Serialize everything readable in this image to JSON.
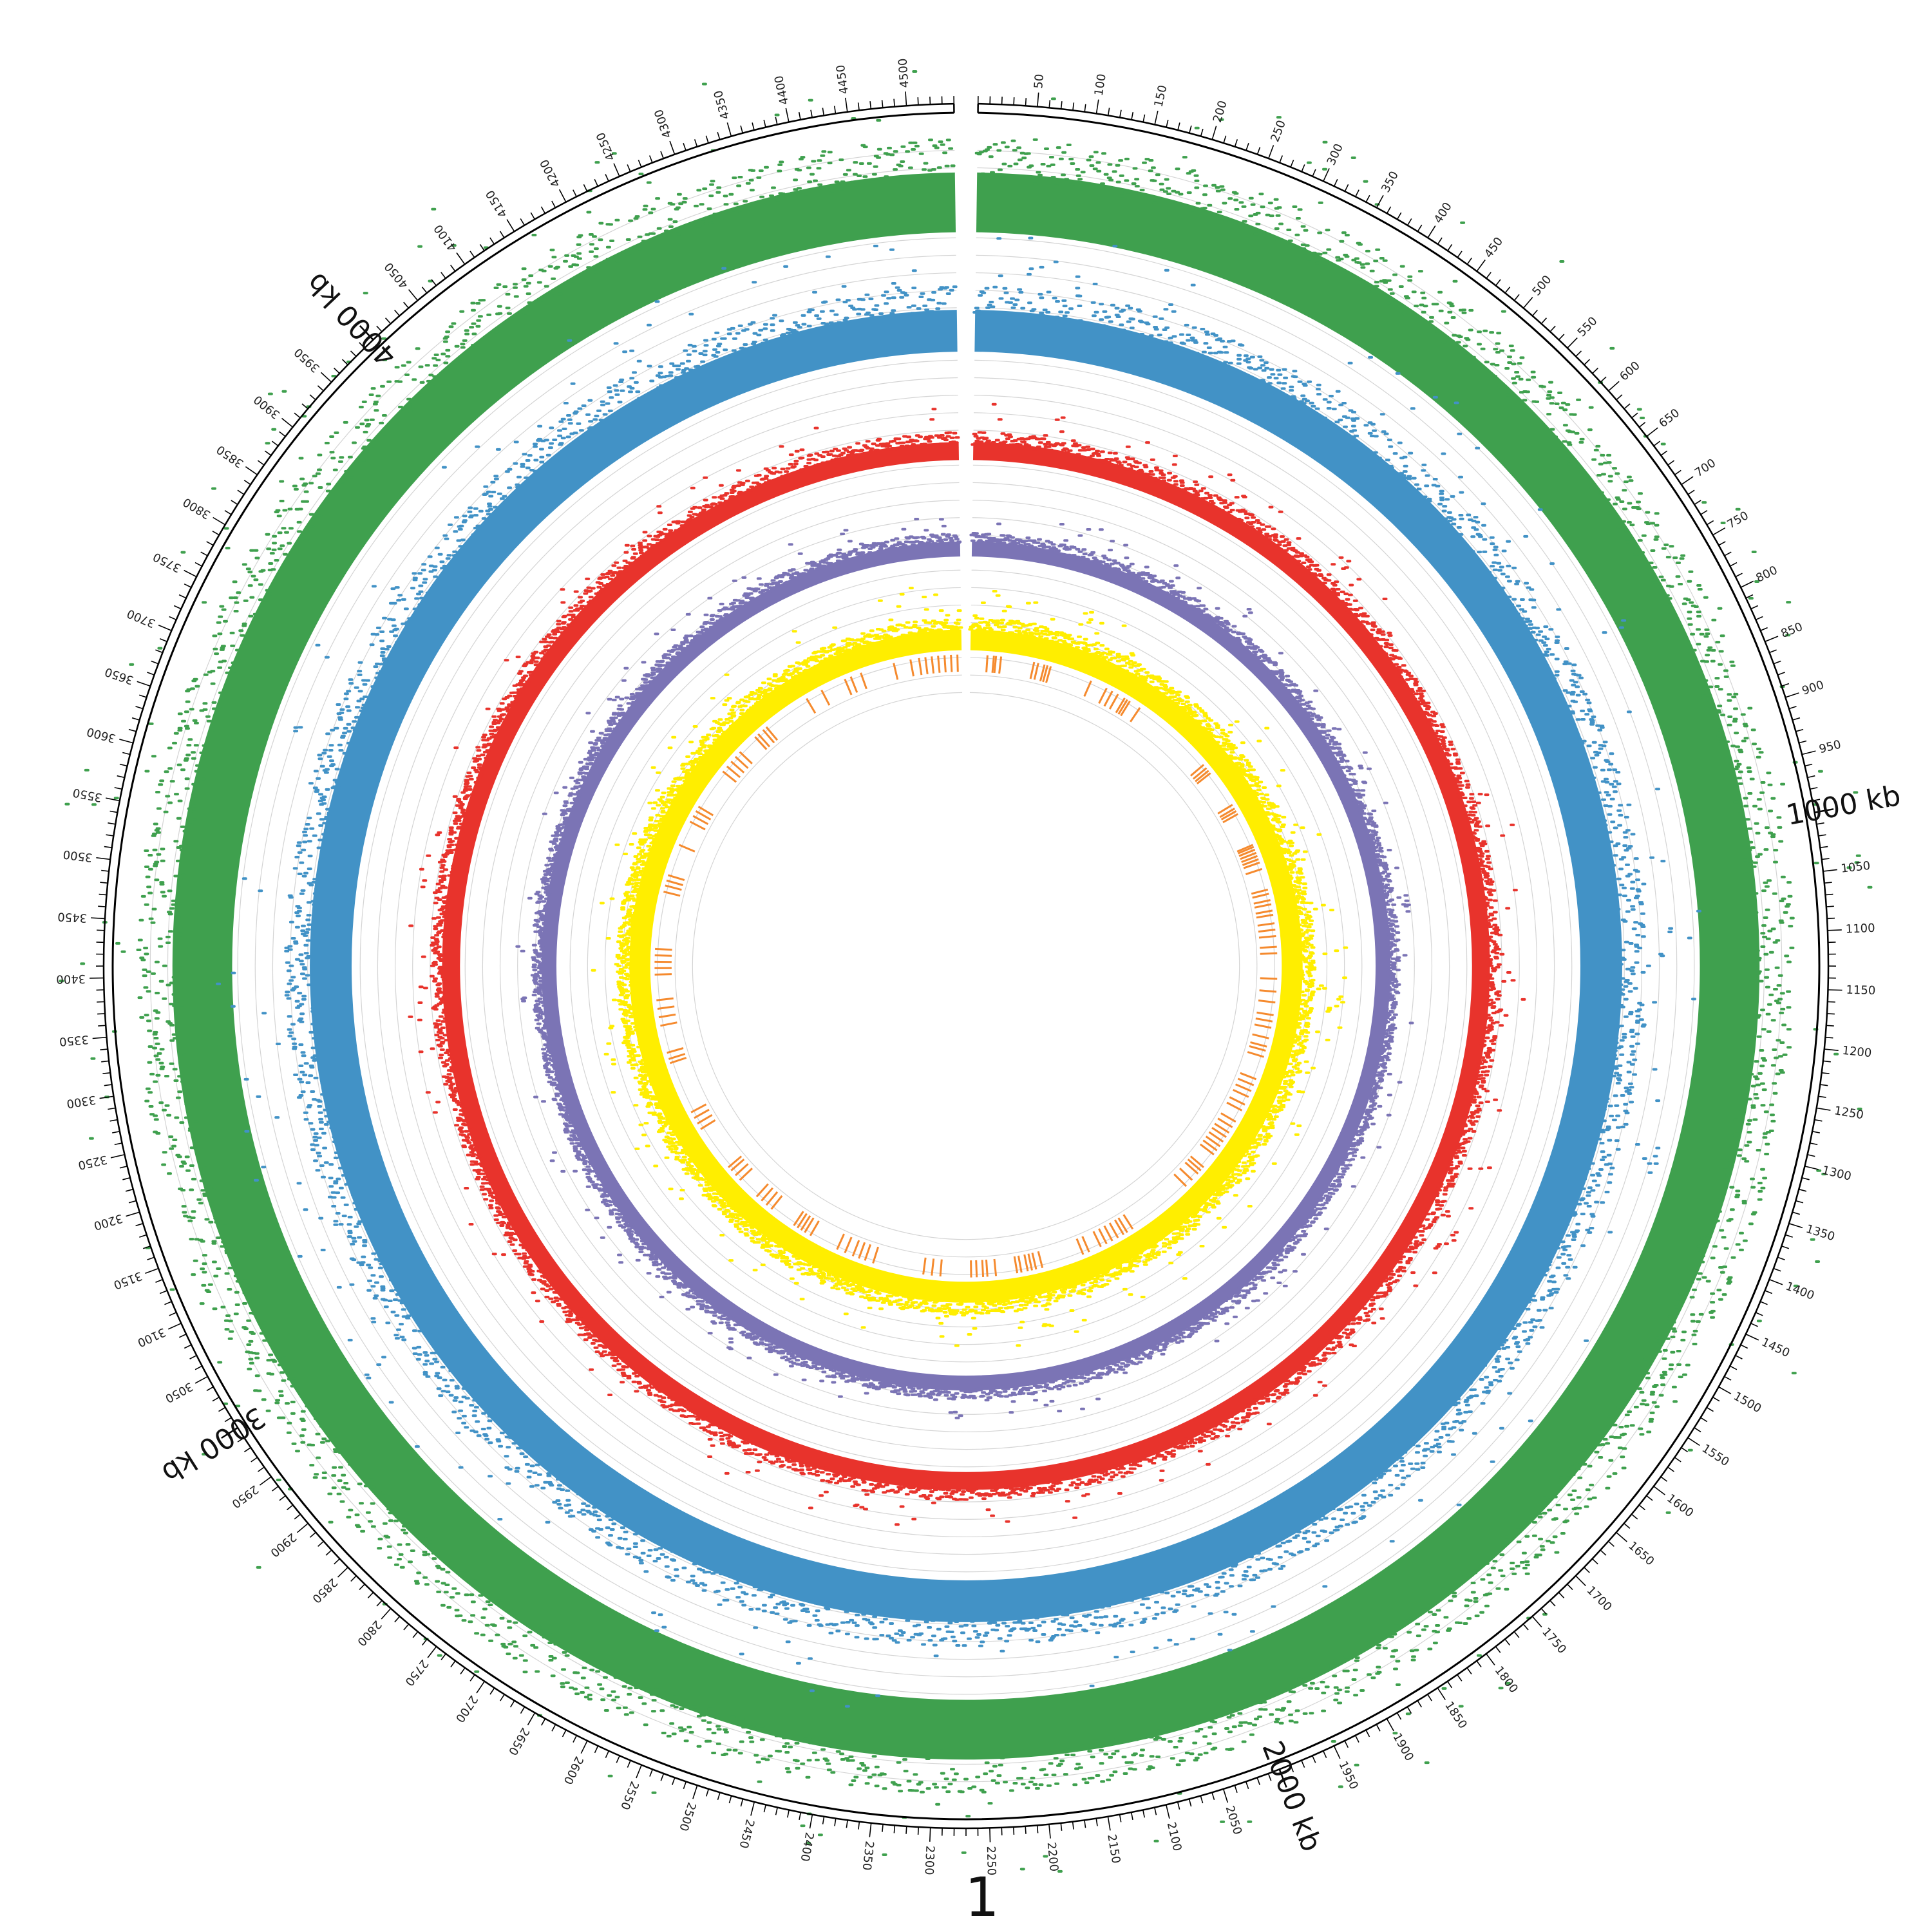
{
  "chart_data": {
    "type": "scatter",
    "genome_length_kb": 4540,
    "chromosome_label": "1",
    "major_ticks": [
      {
        "kb": 1000,
        "label": "1000 kb"
      },
      {
        "kb": 2000,
        "label": "2000 kb"
      },
      {
        "kb": 3000,
        "label": "3000 kb"
      },
      {
        "kb": 4000,
        "label": "4000 kb"
      }
    ],
    "labeled_tick_interval_kb": 50,
    "minor_tick_interval_kb": 10,
    "tracks": [
      {
        "color": "#3fa04e",
        "baseline": 0.96,
        "mean_height": 0.1
      },
      {
        "color": "#4292c6",
        "baseline": 0.79,
        "mean_height": 0.07
      },
      {
        "color": "#e8332c",
        "baseline": 0.623,
        "mean_height": 0.03
      },
      {
        "color": "#7b74b5",
        "baseline": 0.505,
        "mean_height": 0.025
      },
      {
        "color": "#ffee00",
        "baseline": 0.405,
        "mean_height": 0.035
      }
    ],
    "features_color": "#f58a2e",
    "feature_positions_kb": [
      40,
      55,
      60,
      72,
      150,
      160,
      175,
      182,
      190,
      290,
      330,
      345,
      360,
      378,
      385,
      392,
      420,
      620,
      630,
      638,
      645,
      735,
      745,
      752,
      760,
      840,
      845,
      852,
      860,
      868,
      876,
      884,
      900,
      950,
      960,
      975,
      985,
      1000,
      1010,
      1030,
      1045,
      1060,
      1085,
      1100,
      1160,
      1190,
      1215,
      1245,
      1260,
      1275,
      1300,
      1320,
      1330,
      1345,
      1400,
      1415,
      1430,
      1445,
      1465,
      1480,
      1510,
      1525,
      1540,
      1552,
      1565,
      1578,
      1590,
      1602,
      1640,
      1650,
      1660,
      1680,
      1700,
      1860,
      1875,
      1885,
      1900,
      1915,
      1930,
      1945,
      1975,
      1990,
      2090,
      2105,
      2115,
      2125,
      2140,
      2150,
      2200,
      2220,
      2230,
      2245,
      2258,
      2330,
      2350,
      2370,
      2490,
      2510,
      2525,
      2540,
      2560,
      2580,
      2650,
      2665,
      2675,
      2685,
      2695,
      2760,
      2775,
      2790,
      2805,
      2860,
      2875,
      2890,
      2900,
      3010,
      3025,
      3040,
      3055,
      3180,
      3190,
      3205,
      3270,
      3290,
      3310,
      3330,
      3390,
      3405,
      3420,
      3435,
      3450,
      3585,
      3600,
      3612,
      3625,
      3700,
      3760,
      3775,
      3788,
      3800,
      3900,
      3915,
      3930,
      3945,
      3960,
      4010,
      4020,
      4035,
      4045,
      4160,
      4200,
      4260,
      4275,
      4300,
      4380,
      4420,
      4440,
      4455,
      4470,
      4485,
      4500,
      4515,
      4530
    ]
  }
}
